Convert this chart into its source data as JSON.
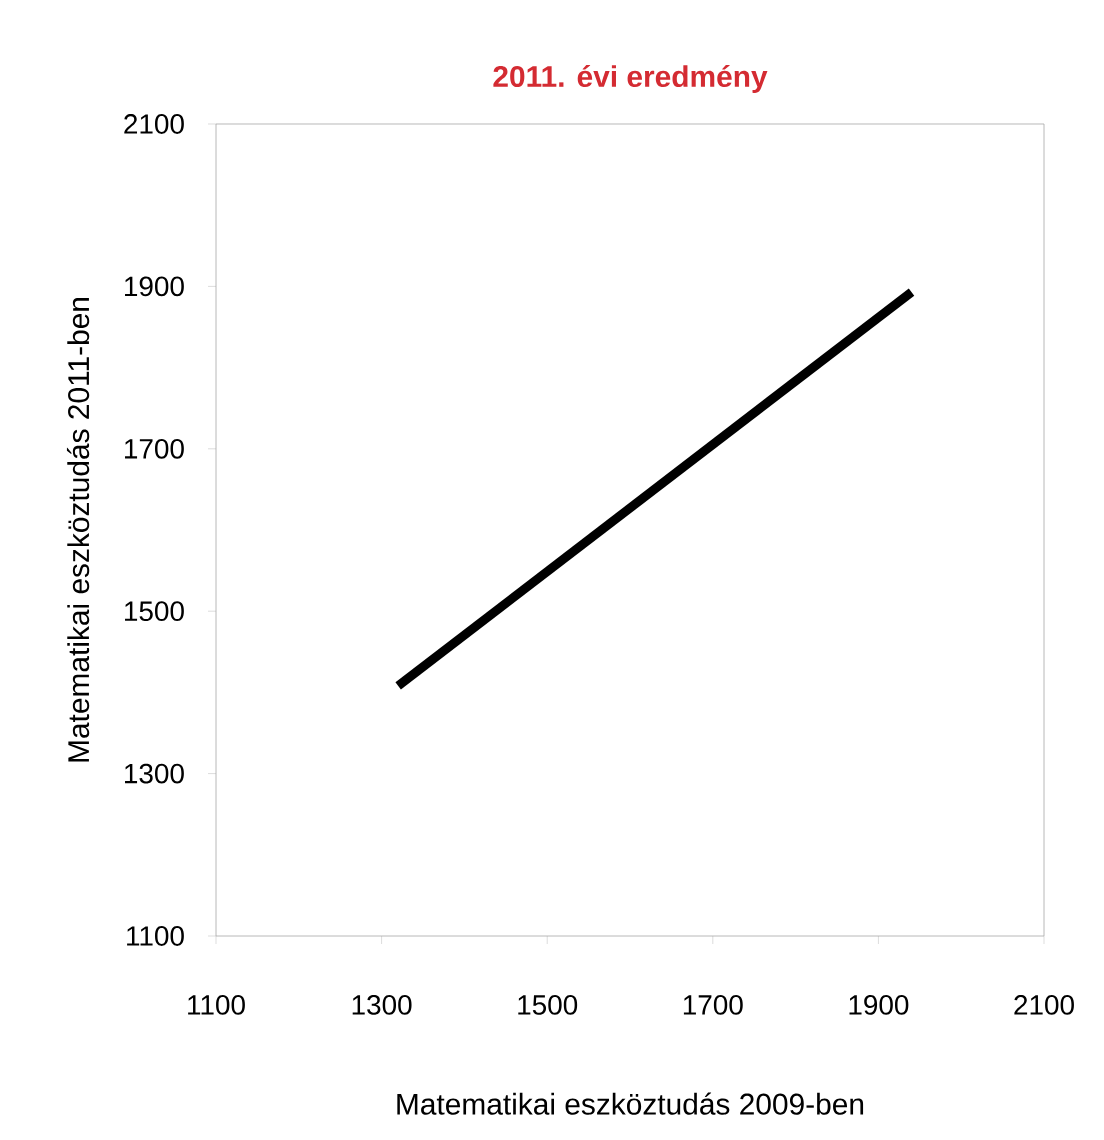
{
  "chart_data": {
    "type": "line",
    "title": "2011. évi eredmény",
    "xlabel": "Matematikai eszköztudás 2009-ben",
    "ylabel": "Matematikai eszköztudás 2011-ben",
    "x": [
      1320,
      1940
    ],
    "series": [
      {
        "color": "#000000",
        "values": [
          1408,
          1893
        ]
      }
    ],
    "xlim": [
      1100,
      2100
    ],
    "ylim": [
      1100,
      2100
    ],
    "xticks": [
      1100,
      1300,
      1500,
      1700,
      1900,
      2100
    ],
    "yticks": [
      1100,
      1300,
      1500,
      1700,
      1900,
      2100
    ],
    "grid": false,
    "marker": "none",
    "line_style": "solid"
  }
}
